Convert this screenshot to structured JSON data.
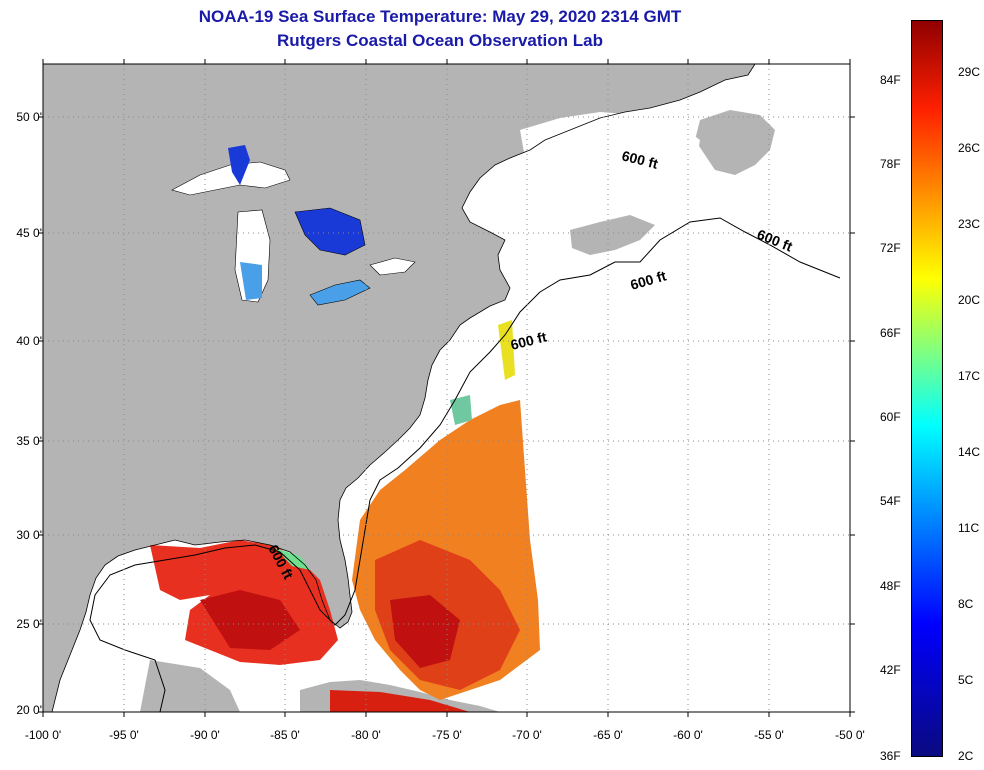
{
  "title": {
    "line1": "NOAA-19 Sea Surface Temperature:  May 29, 2020 2314 GMT",
    "line2": "Rutgers Coastal Ocean Observation Lab"
  },
  "axes": {
    "lat_labels": [
      "50 0'",
      "45 0'",
      "40 0'",
      "35 0'",
      "30 0'",
      "25 0'",
      "20 0'"
    ],
    "lon_labels": [
      "-100 0'",
      "-95 0'",
      "-90 0'",
      "-85 0'",
      "-80 0'",
      "-75 0'",
      "-70 0'",
      "-65 0'",
      "-60 0'",
      "-55 0'",
      "-50 0'"
    ],
    "lat_range": [
      20,
      52.5
    ],
    "lon_range": [
      -100,
      -50
    ]
  },
  "contour_labels": [
    "600 ft",
    "600 ft",
    "600 ft",
    "600 ft",
    "600 ft"
  ],
  "colorbar": {
    "f_labels": [
      "84F",
      "78F",
      "72F",
      "66F",
      "60F",
      "54F",
      "48F",
      "42F",
      "36F"
    ],
    "c_labels": [
      "29C",
      "26C",
      "23C",
      "20C",
      "17C",
      "14C",
      "11C",
      "8C",
      "5C",
      "2C"
    ],
    "f_range": [
      36,
      88
    ],
    "c_range": [
      2,
      31
    ]
  },
  "colors": {
    "land": "#b4b4b4",
    "water": "#ffffff",
    "title": "#1a1aa8"
  }
}
